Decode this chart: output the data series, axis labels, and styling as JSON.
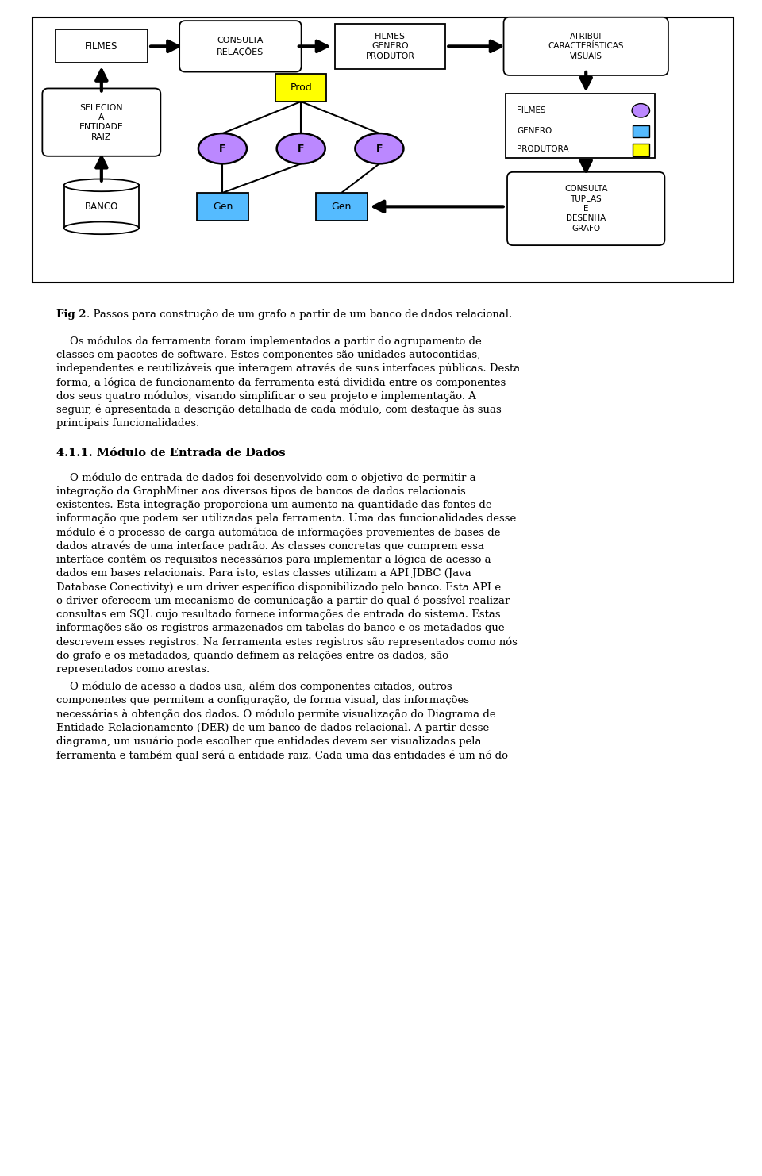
{
  "fig_caption_bold": "Fig 2",
  "fig_caption_normal": ". Passos para construção de um grafo a partir de um banco de dados relacional.",
  "paragraph1_lines": [
    "    Os módulos da ferramenta foram implementados a partir do agrupamento de",
    "classes em pacotes de software. Estes componentes são unidades autocontidas,",
    "independentes e reutilizáveis que interagem através de suas interfaces públicas. Desta",
    "forma, a lógica de funcionamento da ferramenta está dividida entre os componentes",
    "dos seus quatro módulos, visando simplificar o seu projeto e implementação. A",
    "seguir, é apresentada a descrição detalhada de cada módulo, com destaque às suas",
    "principais funcionalidades."
  ],
  "section_title": "4.1.1. Módulo de Entrada de Dados",
  "paragraph2_lines": [
    "    O módulo de entrada de dados foi desenvolvido com o objetivo de permitir a",
    "integração da GraphMiner aos diversos tipos de bancos de dados relacionais",
    "existentes. Esta integração proporciona um aumento na quantidade das fontes de",
    "informação que podem ser utilizadas pela ferramenta. Uma das funcionalidades desse",
    "módulo é o processo de carga automática de informações provenientes de bases de",
    "dados através de uma interface padrão. As classes concretas que cumprem essa",
    "interface contêm os requisitos necessários para implementar a lógica de acesso a",
    "dados em bases relacionais. Para isto, estas classes utilizam a API JDBC (Java",
    "Database Conectivity) e um driver específico disponibilizado pelo banco. Esta API e",
    "o driver oferecem um mecanismo de comunicação a partir do qual é possível realizar",
    "consultas em SQL cujo resultado fornece informações de entrada do sistema. Estas",
    "informações são os registros armazenados em tabelas do banco e os metadados que",
    "descrevem esses registros. Na ferramenta estes registros são representados como nós",
    "do grafo e os metadados, quando definem as relações entre os dados, são",
    "representados como arestas."
  ],
  "paragraph3_lines": [
    "    O módulo de acesso a dados usa, além dos componentes citados, outros",
    "componentes que permitem a configuração, de forma visual, das informações",
    "necessárias à obtenção dos dados. O módulo permite visualização do Diagrama de",
    "Entidade-Relacionamento (DER) de um banco de dados relacional. A partir desse",
    "diagrama, um usuário pode escolher que entidades devem ser visualizadas pela",
    "ferramenta e também qual será a entidade raiz. Cada uma das entidades é um nó do"
  ],
  "bg_color": "#ffffff",
  "text_color": "#000000",
  "purple_fill": "#bb88ff",
  "cyan_fill": "#55bbff",
  "yellow_fill": "#ffff00"
}
